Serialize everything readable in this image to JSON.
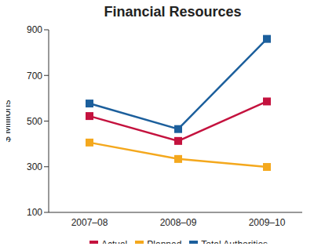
{
  "chart_data": {
    "type": "line",
    "title": "Financial Resources",
    "y_label": "$ Millions",
    "categories": [
      "2007–08",
      "2008–09",
      "2009–10"
    ],
    "series": [
      {
        "name": "Total Authorities",
        "color": "#1c5f9c",
        "values": [
          577,
          465,
          860
        ]
      },
      {
        "name": "Actual",
        "color": "#c4123e",
        "values": [
          522,
          413,
          586
        ]
      },
      {
        "name": "Planned",
        "color": "#f4a81d",
        "values": [
          406,
          334,
          299
        ]
      }
    ],
    "ylim": [
      100,
      900
    ],
    "yticks": [
      100,
      300,
      500,
      700,
      900
    ],
    "grid": false,
    "marker": "square",
    "legend": "bottom"
  }
}
